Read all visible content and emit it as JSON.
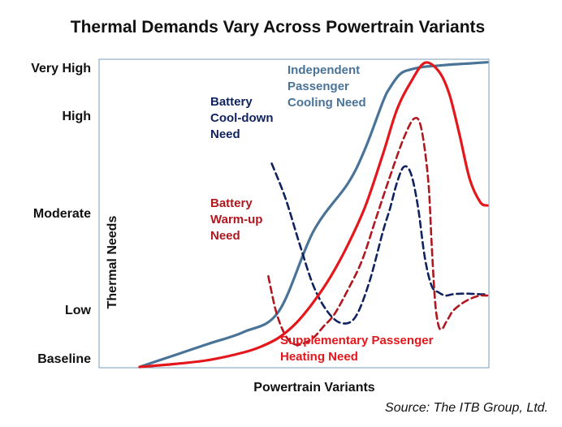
{
  "chart_data": {
    "type": "line",
    "title": "Thermal Demands Vary Across Powertrain Variants",
    "xlabel": "Powertrain Variants",
    "ylabel": "Thermal Needs",
    "y_tick_labels": [
      "Baseline",
      "Low",
      "Moderate",
      "High",
      "Very High"
    ],
    "source": "Source:  The ITB Group, Ltd.",
    "colors": {
      "steel_blue": "#4a7398",
      "navy": "#10235f",
      "red": "#e3171c",
      "dark_red": "#b01820",
      "frame": "#7a9cb8"
    },
    "series": [
      {
        "name": "Independent Passenger Cooling Need",
        "name_lines": [
          "Independent",
          "Passenger",
          "Cooling Need"
        ],
        "color": "#4a7398",
        "style": "solid",
        "x": [
          0,
          10,
          20,
          30,
          40,
          50,
          60,
          65,
          70,
          72,
          75,
          78,
          82,
          86,
          90,
          95,
          100
        ],
        "y": [
          0,
          0.2,
          0.4,
          0.6,
          0.95,
          2.2,
          2.95,
          3.5,
          4.25,
          4.5,
          4.75,
          4.83,
          4.88,
          4.9,
          4.92,
          4.94,
          4.96
        ]
      },
      {
        "name": "Battery Cool-down Need",
        "name_lines": [
          "Battery",
          "Cool-down",
          "Need"
        ],
        "color": "#10235f",
        "style": "dashed",
        "x": [
          38,
          42,
          46,
          50,
          54,
          58,
          62,
          66,
          70,
          72,
          74,
          76,
          78,
          80,
          82,
          84,
          86,
          88,
          90,
          92,
          95,
          98,
          100
        ],
        "y": [
          3.25,
          2.7,
          2.0,
          1.35,
          0.95,
          0.75,
          0.85,
          1.4,
          2.2,
          2.55,
          2.95,
          3.2,
          3.1,
          2.6,
          1.8,
          1.35,
          1.25,
          1.2,
          1.22,
          1.23,
          1.23,
          1.22,
          1.22
        ]
      },
      {
        "name": "Battery Warm-up Need",
        "name_lines": [
          "Battery",
          "Warm-up",
          "Need"
        ],
        "color": "#b01820",
        "style": "dashed",
        "x": [
          37,
          39,
          41,
          43,
          45,
          47,
          50,
          53,
          56,
          60,
          64,
          68,
          72,
          76,
          79,
          81,
          83,
          84,
          85,
          86,
          87,
          88,
          89,
          90,
          92,
          94,
          96,
          98,
          100
        ],
        "y": [
          1.5,
          1.0,
          0.65,
          0.45,
          0.38,
          0.4,
          0.5,
          0.7,
          0.9,
          1.3,
          1.75,
          2.4,
          3.05,
          3.65,
          3.95,
          3.8,
          3.0,
          2.0,
          1.1,
          0.7,
          0.65,
          0.75,
          0.85,
          0.95,
          1.05,
          1.12,
          1.17,
          1.2,
          1.2
        ]
      },
      {
        "name": "Supplementary Passenger Heating Need",
        "name_lines": [
          "Supplementary Passenger",
          "Heating Need"
        ],
        "color": "#e3171c",
        "style": "solid",
        "x": [
          0,
          10,
          20,
          30,
          35,
          40,
          45,
          50,
          55,
          60,
          65,
          70,
          74,
          78,
          82,
          86,
          89,
          92,
          95,
          98,
          100
        ],
        "y": [
          0,
          0.05,
          0.12,
          0.25,
          0.35,
          0.5,
          0.75,
          1.1,
          1.5,
          2.0,
          2.6,
          3.4,
          4.1,
          4.6,
          4.95,
          4.8,
          4.4,
          3.7,
          3.0,
          2.65,
          2.6
        ]
      }
    ]
  }
}
